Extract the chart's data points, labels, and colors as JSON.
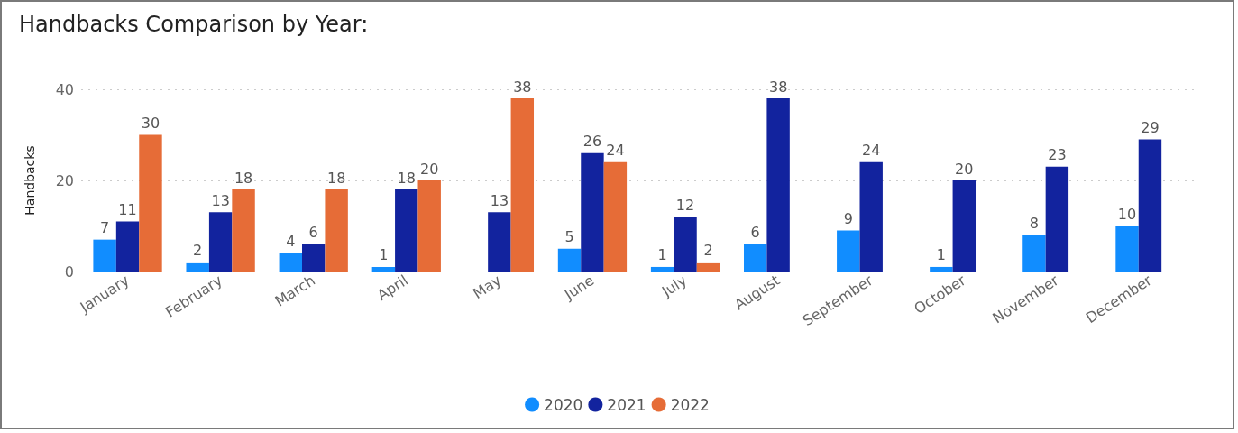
{
  "chart_data": {
    "type": "bar",
    "title": "Handbacks Comparison by Year:",
    "ylabel": "Handbacks",
    "categories": [
      "January",
      "February",
      "March",
      "April",
      "May",
      "June",
      "July",
      "August",
      "September",
      "October",
      "November",
      "December"
    ],
    "series": [
      {
        "name": "2020",
        "color": "#118dff",
        "values": [
          7,
          2,
          4,
          1,
          null,
          5,
          1,
          6,
          9,
          1,
          8,
          10
        ]
      },
      {
        "name": "2021",
        "color": "#12239e",
        "values": [
          11,
          13,
          6,
          18,
          13,
          26,
          12,
          38,
          24,
          20,
          23,
          29
        ]
      },
      {
        "name": "2022",
        "color": "#e66c37",
        "values": [
          30,
          18,
          18,
          20,
          38,
          24,
          2,
          null,
          null,
          null,
          null,
          null
        ]
      }
    ],
    "ylim": [
      0,
      40
    ],
    "yticks": [
      0,
      20,
      40
    ],
    "grid": "y",
    "legend": "bottom",
    "data_labels": true
  }
}
